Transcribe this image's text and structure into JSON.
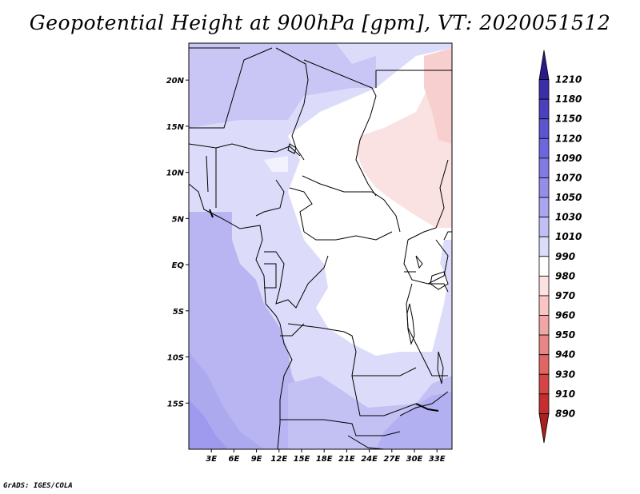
{
  "title": "Geopotential Height at 900hPa [gpm], VT: 2020051512",
  "credit": "GrADS: IGES/COLA",
  "map": {
    "lon_range": [
      0,
      35
    ],
    "lat_range": [
      -20,
      24
    ],
    "lat_labels": [
      {
        "text": "20N",
        "lat": 20
      },
      {
        "text": "15N",
        "lat": 15
      },
      {
        "text": "10N",
        "lat": 10
      },
      {
        "text": "5N",
        "lat": 5
      },
      {
        "text": "EQ",
        "lat": 0
      },
      {
        "text": "5S",
        "lat": -5
      },
      {
        "text": "10S",
        "lat": -10
      },
      {
        "text": "15S",
        "lat": -15
      }
    ],
    "lon_labels": [
      {
        "text": "3E",
        "lon": 3
      },
      {
        "text": "6E",
        "lon": 6
      },
      {
        "text": "9E",
        "lon": 9
      },
      {
        "text": "12E",
        "lon": 12
      },
      {
        "text": "15E",
        "lon": 15
      },
      {
        "text": "18E",
        "lon": 18
      },
      {
        "text": "21E",
        "lon": 21
      },
      {
        "text": "24E",
        "lon": 24
      },
      {
        "text": "27E",
        "lon": 27
      },
      {
        "text": "30E",
        "lon": 30
      },
      {
        "text": "33E",
        "lon": 33
      }
    ]
  },
  "colorbar": {
    "levels": [
      "1210",
      "1180",
      "1150",
      "1120",
      "1090",
      "1070",
      "1050",
      "1030",
      "1010",
      "990",
      "980",
      "970",
      "960",
      "950",
      "940",
      "930",
      "910",
      "890"
    ],
    "colors": [
      "#2a1a8c",
      "#3a2fa8",
      "#4b41bf",
      "#5c54d0",
      "#6e66dc",
      "#8179e4",
      "#948eea",
      "#a9a5f0",
      "#c2bff5",
      "#dcdcfa",
      "#ffffff",
      "#fde0e0",
      "#f8c4c4",
      "#f2a5a5",
      "#ea8585",
      "#e06565",
      "#d44646",
      "#c42e2e",
      "#a82020"
    ]
  }
}
